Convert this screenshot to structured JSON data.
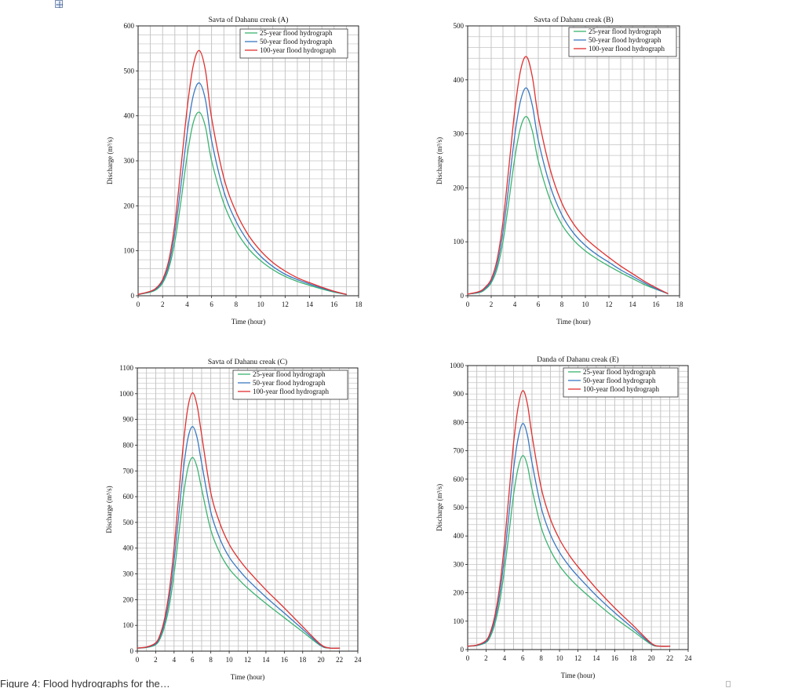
{
  "caption_text": "Figure 4: Flood hydrographs for the…",
  "chart_data": [
    {
      "type": "line",
      "title": "Savta of Dahanu creak (A)",
      "xlabel": "Time (hour)",
      "ylabel": "Discharge (m³/s)",
      "xlim": [
        0,
        18
      ],
      "ylim": [
        0,
        600
      ],
      "xticks": [
        0,
        2,
        4,
        6,
        8,
        10,
        12,
        14,
        16,
        18
      ],
      "yticks": [
        0,
        100,
        200,
        300,
        400,
        500,
        600
      ],
      "grid": true,
      "legend": "top-right",
      "series": [
        {
          "name": "25-year flood hydrograph",
          "color": "#3cb371",
          "x": [
            0,
            1,
            1.5,
            2,
            2.5,
            3,
            3.5,
            4,
            4.5,
            5,
            5.5,
            6,
            7,
            8,
            9,
            10,
            11,
            12,
            13,
            14,
            15,
            16,
            17
          ],
          "y": [
            3,
            8,
            14,
            28,
            60,
            120,
            210,
            310,
            385,
            408,
            375,
            300,
            205,
            145,
            105,
            78,
            58,
            43,
            32,
            23,
            15,
            8,
            3
          ]
        },
        {
          "name": "50-year flood hydrograph",
          "color": "#3a78c2",
          "x": [
            0,
            1,
            1.5,
            2,
            2.5,
            3,
            3.5,
            4,
            4.5,
            5,
            5.5,
            6,
            7,
            8,
            9,
            10,
            11,
            12,
            13,
            14,
            15,
            16,
            17
          ],
          "y": [
            3,
            9,
            16,
            32,
            68,
            140,
            245,
            360,
            445,
            473,
            435,
            345,
            232,
            165,
            120,
            88,
            65,
            48,
            36,
            26,
            17,
            9,
            3
          ]
        },
        {
          "name": "100-year flood hydrograph",
          "color": "#e03030",
          "x": [
            0,
            1,
            1.5,
            2,
            2.5,
            3,
            3.5,
            4,
            4.5,
            5,
            5.5,
            6,
            7,
            8,
            9,
            10,
            11,
            12,
            13,
            14,
            15,
            16,
            17
          ],
          "y": [
            3,
            10,
            18,
            36,
            78,
            160,
            285,
            415,
            512,
            545,
            500,
            395,
            262,
            186,
            135,
            100,
            74,
            55,
            40,
            29,
            19,
            10,
            3
          ]
        }
      ]
    },
    {
      "type": "line",
      "title": "Savta of Dahanu creak (B)",
      "xlabel": "Time (hour)",
      "ylabel": "Discharge (m³/s)",
      "xlim": [
        0,
        18
      ],
      "ylim": [
        0,
        500
      ],
      "xticks": [
        0,
        2,
        4,
        6,
        8,
        10,
        12,
        14,
        16,
        18
      ],
      "yticks": [
        0,
        100,
        200,
        300,
        400,
        500
      ],
      "grid": true,
      "legend": "top-right",
      "series": [
        {
          "name": "25-year flood hydrograph",
          "color": "#3cb371",
          "x": [
            0,
            1,
            1.5,
            2,
            2.5,
            3,
            3.5,
            4,
            4.5,
            5,
            5.5,
            6,
            7,
            8,
            9,
            10,
            11,
            12,
            13,
            14,
            15,
            16,
            17
          ],
          "y": [
            3,
            6,
            12,
            24,
            50,
            100,
            175,
            255,
            312,
            332,
            305,
            250,
            178,
            132,
            103,
            83,
            68,
            55,
            43,
            32,
            21,
            12,
            4
          ]
        },
        {
          "name": "50-year flood hydrograph",
          "color": "#3a78c2",
          "x": [
            0,
            1,
            1.5,
            2,
            2.5,
            3,
            3.5,
            4,
            4.5,
            5,
            5.5,
            6,
            7,
            8,
            9,
            10,
            11,
            12,
            13,
            14,
            15,
            16,
            17
          ],
          "y": [
            3,
            7,
            14,
            27,
            58,
            118,
            205,
            297,
            362,
            385,
            352,
            288,
            204,
            150,
            116,
            93,
            76,
            62,
            48,
            36,
            24,
            13,
            4
          ]
        },
        {
          "name": "100-year flood hydrograph",
          "color": "#e03030",
          "x": [
            0,
            1,
            1.5,
            2,
            2.5,
            3,
            3.5,
            4,
            4.5,
            5,
            5.5,
            6,
            7,
            8,
            9,
            10,
            11,
            12,
            13,
            14,
            15,
            16,
            17
          ],
          "y": [
            3,
            8,
            16,
            31,
            67,
            137,
            238,
            343,
            418,
            443,
            405,
            332,
            235,
            172,
            133,
            107,
            88,
            71,
            55,
            41,
            27,
            15,
            4
          ]
        }
      ]
    },
    {
      "type": "line",
      "title": "Savta of Dahanu creak (C)",
      "xlabel": "Time (hour)",
      "ylabel": "Discharge (m³/s)",
      "xlim": [
        0,
        24
      ],
      "ylim": [
        0,
        1100
      ],
      "xticks": [
        0,
        2,
        4,
        6,
        8,
        10,
        12,
        14,
        16,
        18,
        20,
        22,
        24
      ],
      "yticks": [
        0,
        100,
        200,
        300,
        400,
        500,
        600,
        700,
        800,
        900,
        1000,
        1100
      ],
      "grid": true,
      "legend": "top-right",
      "series": [
        {
          "name": "25-year flood hydrograph",
          "color": "#3cb371",
          "x": [
            0,
            1,
            2,
            2.5,
            3,
            3.5,
            4,
            4.5,
            5,
            5.5,
            6,
            6.5,
            7,
            8,
            9,
            10,
            11,
            12,
            14,
            16,
            18,
            20,
            21,
            22
          ],
          "y": [
            12,
            14,
            25,
            50,
            100,
            180,
            300,
            450,
            600,
            710,
            752,
            715,
            630,
            470,
            380,
            320,
            280,
            245,
            185,
            130,
            75,
            20,
            12,
            12
          ]
        },
        {
          "name": "50-year flood hydrograph",
          "color": "#3a78c2",
          "x": [
            0,
            1,
            2,
            2.5,
            3,
            3.5,
            4,
            4.5,
            5,
            5.5,
            6,
            6.5,
            7,
            8,
            9,
            10,
            11,
            12,
            14,
            16,
            18,
            20,
            21,
            22
          ],
          "y": [
            12,
            15,
            28,
            58,
            115,
            210,
            350,
            525,
            700,
            825,
            872,
            830,
            730,
            540,
            435,
            365,
            318,
            278,
            210,
            148,
            85,
            22,
            12,
            12
          ]
        },
        {
          "name": "100-year flood hydrograph",
          "color": "#e03030",
          "x": [
            0,
            1,
            2,
            2.5,
            3,
            3.5,
            4,
            4.5,
            5,
            5.5,
            6,
            6.5,
            7,
            8,
            9,
            10,
            11,
            12,
            14,
            16,
            18,
            20,
            21,
            22
          ],
          "y": [
            12,
            16,
            32,
            66,
            132,
            240,
            400,
            600,
            800,
            945,
            1003,
            955,
            840,
            615,
            495,
            415,
            360,
            315,
            238,
            168,
            95,
            25,
            12,
            12
          ]
        }
      ]
    },
    {
      "type": "line",
      "title": "Danda of Dahanu creak (E)",
      "xlabel": "Time (hour)",
      "ylabel": "Discharge (m³/s)",
      "xlim": [
        0,
        24
      ],
      "ylim": [
        0,
        1000
      ],
      "xticks": [
        0,
        2,
        4,
        6,
        8,
        10,
        12,
        14,
        16,
        18,
        20,
        22,
        24
      ],
      "yticks": [
        0,
        100,
        200,
        300,
        400,
        500,
        600,
        700,
        800,
        900,
        1000
      ],
      "grid": true,
      "legend": "top-right",
      "series": [
        {
          "name": "25-year flood hydrograph",
          "color": "#3cb371",
          "x": [
            0,
            1,
            2,
            2.5,
            3,
            3.5,
            4,
            4.5,
            5,
            5.5,
            6,
            6.5,
            7,
            8,
            9,
            10,
            11,
            12,
            14,
            16,
            18,
            20,
            21,
            22
          ],
          "y": [
            12,
            14,
            25,
            48,
            95,
            170,
            280,
            410,
            545,
            640,
            683,
            648,
            565,
            430,
            350,
            295,
            255,
            222,
            165,
            112,
            65,
            18,
            12,
            12
          ]
        },
        {
          "name": "50-year flood hydrograph",
          "color": "#3a78c2",
          "x": [
            0,
            1,
            2,
            2.5,
            3,
            3.5,
            4,
            4.5,
            5,
            5.5,
            6,
            6.5,
            7,
            8,
            9,
            10,
            11,
            12,
            14,
            16,
            18,
            20,
            21,
            22
          ],
          "y": [
            12,
            15,
            28,
            56,
            110,
            198,
            325,
            478,
            635,
            745,
            796,
            755,
            658,
            500,
            405,
            342,
            296,
            258,
            190,
            130,
            75,
            20,
            12,
            12
          ]
        },
        {
          "name": "100-year flood hydrograph",
          "color": "#e03030",
          "x": [
            0,
            1,
            2,
            2.5,
            3,
            3.5,
            4,
            4.5,
            5,
            5.5,
            6,
            6.5,
            7,
            8,
            9,
            10,
            11,
            12,
            14,
            16,
            18,
            20,
            21,
            22
          ],
          "y": [
            12,
            16,
            32,
            64,
            126,
            226,
            372,
            548,
            728,
            855,
            912,
            865,
            755,
            570,
            460,
            388,
            335,
            292,
            215,
            147,
            85,
            22,
            12,
            12
          ]
        }
      ]
    }
  ]
}
